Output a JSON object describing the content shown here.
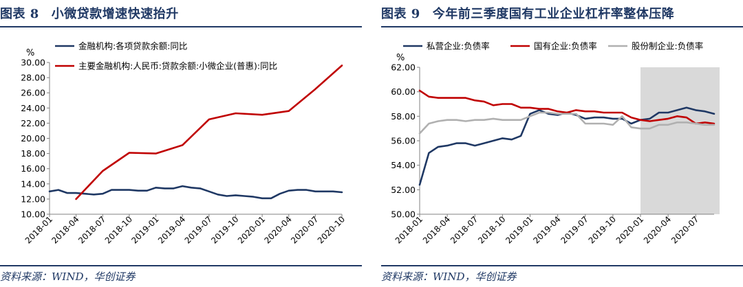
{
  "left": {
    "figure_label": "图表 8",
    "title": "小微贷款增速快速抬升",
    "source": "资料来源：WIND，华创证券",
    "colors": {
      "series1": "#1f3864",
      "series2": "#c00000"
    },
    "chart_data": {
      "type": "line",
      "ylabel": "%",
      "ylim": [
        10,
        30
      ],
      "yticks": [
        "10.00",
        "12.00",
        "14.00",
        "16.00",
        "18.00",
        "20.00",
        "22.00",
        "24.00",
        "26.00",
        "28.00",
        "30.00"
      ],
      "xlim": [
        "2018-01",
        "2020-10"
      ],
      "xtick_labels": [
        "2018-01",
        "2018-04",
        "2018-07",
        "2018-10",
        "2019-01",
        "2019-04",
        "2019-07",
        "2019-10",
        "2020-01",
        "2020-04",
        "2020-07",
        "2020-10"
      ],
      "legend": [
        "金融机构:各项贷款余额:同比",
        "主要金融机构:人民币:贷款余额:小微企业(普惠):同比"
      ],
      "series": [
        {
          "name": "金融机构:各项贷款余额:同比",
          "x": [
            "2018-01",
            "2018-02",
            "2018-03",
            "2018-04",
            "2018-05",
            "2018-06",
            "2018-07",
            "2018-08",
            "2018-09",
            "2018-10",
            "2018-11",
            "2018-12",
            "2019-01",
            "2019-02",
            "2019-03",
            "2019-04",
            "2019-05",
            "2019-06",
            "2019-07",
            "2019-08",
            "2019-09",
            "2019-10",
            "2019-11",
            "2019-12",
            "2020-01",
            "2020-02",
            "2020-03",
            "2020-04",
            "2020-05",
            "2020-06",
            "2020-07",
            "2020-08",
            "2020-09",
            "2020-10"
          ],
          "values": [
            13.0,
            13.2,
            12.8,
            12.8,
            12.7,
            12.6,
            12.7,
            13.2,
            13.2,
            13.2,
            13.1,
            13.1,
            13.5,
            13.4,
            13.4,
            13.7,
            13.5,
            13.4,
            13.0,
            12.6,
            12.4,
            12.5,
            12.4,
            12.3,
            12.1,
            12.1,
            12.7,
            13.1,
            13.2,
            13.2,
            13.0,
            13.0,
            13.0,
            12.9
          ]
        },
        {
          "name": "主要金融机构:人民币:贷款余额:小微企业(普惠):同比",
          "x": [
            "2018-04",
            "2018-07",
            "2018-10",
            "2019-01",
            "2019-04",
            "2019-07",
            "2019-10",
            "2020-01",
            "2020-04",
            "2020-07",
            "2020-10"
          ],
          "values": [
            12.0,
            15.7,
            18.1,
            18.0,
            19.1,
            22.5,
            23.3,
            23.1,
            23.6,
            26.5,
            29.6
          ]
        }
      ]
    }
  },
  "right": {
    "figure_label": "图表 9",
    "title": "今年前三季度国有工业企业杠杆率整体压降",
    "source": "资料来源：WIND，华创证券",
    "colors": {
      "series1": "#1f3864",
      "series2": "#c00000",
      "series3": "#b0b0b0",
      "shade": "#d9d9d9"
    },
    "chart_data": {
      "type": "line",
      "ylabel": "%",
      "ylim": [
        50,
        62
      ],
      "yticks": [
        "50.00",
        "52.00",
        "54.00",
        "56.00",
        "58.00",
        "60.00",
        "62.00"
      ],
      "xlim": [
        "2018-01",
        "2020-09"
      ],
      "xtick_labels": [
        "2018-01",
        "2018-04",
        "2018-07",
        "2018-10",
        "2019-01",
        "2019-04",
        "2019-07",
        "2019-10",
        "2020-01",
        "2020-04",
        "2020-07"
      ],
      "shaded_range": [
        "2020-01",
        "2020-09"
      ],
      "legend": [
        "私营企业:负债率",
        "国有企业:负债率",
        "股份制企业:负债率"
      ],
      "series": [
        {
          "name": "私营企业:负债率",
          "x": [
            "2018-01",
            "2018-02",
            "2018-03",
            "2018-04",
            "2018-05",
            "2018-06",
            "2018-07",
            "2018-08",
            "2018-09",
            "2018-10",
            "2018-11",
            "2018-12",
            "2019-01",
            "2019-02",
            "2019-03",
            "2019-04",
            "2019-05",
            "2019-06",
            "2019-07",
            "2019-08",
            "2019-09",
            "2019-10",
            "2019-11",
            "2019-12",
            "2020-01",
            "2020-02",
            "2020-03",
            "2020-04",
            "2020-05",
            "2020-06",
            "2020-07",
            "2020-08",
            "2020-09"
          ],
          "values": [
            52.4,
            55.0,
            55.5,
            55.6,
            55.8,
            55.8,
            55.6,
            55.8,
            56.0,
            56.2,
            56.1,
            56.4,
            58.2,
            58.5,
            58.2,
            58.1,
            58.3,
            58.1,
            57.8,
            57.9,
            57.9,
            57.8,
            57.8,
            57.4,
            57.7,
            57.8,
            58.3,
            58.3,
            58.5,
            58.7,
            58.5,
            58.4,
            58.2
          ]
        },
        {
          "name": "国有企业:负债率",
          "x": [
            "2018-01",
            "2018-02",
            "2018-03",
            "2018-04",
            "2018-05",
            "2018-06",
            "2018-07",
            "2018-08",
            "2018-09",
            "2018-10",
            "2018-11",
            "2018-12",
            "2019-01",
            "2019-02",
            "2019-03",
            "2019-04",
            "2019-05",
            "2019-06",
            "2019-07",
            "2019-08",
            "2019-09",
            "2019-10",
            "2019-11",
            "2019-12",
            "2020-01",
            "2020-02",
            "2020-03",
            "2020-04",
            "2020-05",
            "2020-06",
            "2020-07",
            "2020-08",
            "2020-09"
          ],
          "values": [
            60.1,
            59.6,
            59.5,
            59.5,
            59.5,
            59.5,
            59.3,
            59.2,
            58.9,
            59.0,
            59.0,
            58.7,
            58.7,
            58.6,
            58.6,
            58.4,
            58.3,
            58.5,
            58.4,
            58.4,
            58.3,
            58.3,
            58.3,
            57.9,
            57.7,
            57.6,
            57.7,
            57.8,
            58.0,
            57.9,
            57.4,
            57.5,
            57.4
          ]
        },
        {
          "name": "股份制企业:负债率",
          "x": [
            "2018-01",
            "2018-02",
            "2018-03",
            "2018-04",
            "2018-05",
            "2018-06",
            "2018-07",
            "2018-08",
            "2018-09",
            "2018-10",
            "2018-11",
            "2018-12",
            "2019-01",
            "2019-02",
            "2019-03",
            "2019-04",
            "2019-05",
            "2019-06",
            "2019-07",
            "2019-08",
            "2019-09",
            "2019-10",
            "2019-11",
            "2019-12",
            "2020-01",
            "2020-02",
            "2020-03",
            "2020-04",
            "2020-05",
            "2020-06",
            "2020-07",
            "2020-08",
            "2020-09"
          ],
          "values": [
            56.6,
            57.4,
            57.6,
            57.7,
            57.7,
            57.6,
            57.7,
            57.7,
            57.8,
            57.7,
            57.7,
            57.7,
            58.0,
            58.3,
            58.3,
            58.2,
            58.2,
            58.2,
            57.4,
            57.4,
            57.4,
            57.3,
            58.0,
            57.1,
            57.0,
            57.0,
            57.3,
            57.3,
            57.5,
            57.5,
            57.4,
            57.3,
            57.3
          ]
        }
      ]
    }
  }
}
